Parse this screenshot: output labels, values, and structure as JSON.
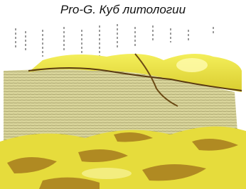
{
  "caption": {
    "title": "Pro-G. Куб литологии"
  }
}
